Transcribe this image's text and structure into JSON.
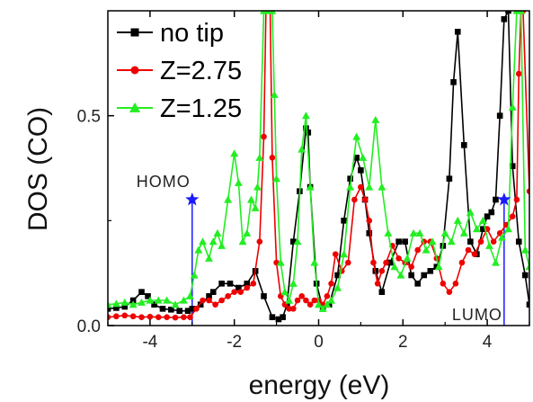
{
  "chart_data": {
    "type": "line",
    "xlabel": "energy (eV)",
    "ylabel": "DOS (CO)",
    "xlim": [
      -5,
      5
    ],
    "ylim": [
      0,
      0.75
    ],
    "xticks": [
      -4,
      -2,
      0,
      2,
      4
    ],
    "xtick_labels": [
      "-4",
      "-2",
      "0",
      "2",
      "4"
    ],
    "yticks": [
      0.0,
      0.5
    ],
    "ytick_labels": [
      "0.0",
      "0.5"
    ],
    "grid": false,
    "legend_position": "top-left",
    "series": [
      {
        "name": "no tip",
        "color": "#000000",
        "marker": "square",
        "x": [
          -5.0,
          -4.8,
          -4.6,
          -4.4,
          -4.2,
          -4.05,
          -3.9,
          -3.7,
          -3.5,
          -3.3,
          -3.1,
          -3.0,
          -2.8,
          -2.6,
          -2.5,
          -2.3,
          -2.1,
          -1.9,
          -1.7,
          -1.5,
          -1.3,
          -1.1,
          -0.95,
          -0.85,
          -0.75,
          -0.6,
          -0.45,
          -0.3,
          -0.25,
          -0.2,
          -0.05,
          0.1,
          0.25,
          0.45,
          0.6,
          0.75,
          0.9,
          1.0,
          1.1,
          1.2,
          1.35,
          1.5,
          1.7,
          1.9,
          2.05,
          2.2,
          2.35,
          2.5,
          2.65,
          2.8,
          2.95,
          3.1,
          3.2,
          3.3,
          3.45,
          3.6,
          3.75,
          3.9,
          4.0,
          4.1,
          4.2,
          4.3,
          4.4,
          4.5,
          4.6,
          4.75,
          4.9,
          5.0
        ],
        "y": [
          0.04,
          0.042,
          0.045,
          0.06,
          0.08,
          0.07,
          0.05,
          0.04,
          0.038,
          0.035,
          0.035,
          0.04,
          0.05,
          0.07,
          0.08,
          0.1,
          0.1,
          0.09,
          0.1,
          0.13,
          0.07,
          0.02,
          0.015,
          0.02,
          0.05,
          0.2,
          0.32,
          0.47,
          0.46,
          0.33,
          0.1,
          0.04,
          0.05,
          0.12,
          0.25,
          0.35,
          0.4,
          0.37,
          0.3,
          0.22,
          0.13,
          0.08,
          0.15,
          0.2,
          0.2,
          0.12,
          0.1,
          0.12,
          0.13,
          0.14,
          0.19,
          0.35,
          0.58,
          0.7,
          0.43,
          0.2,
          0.17,
          0.23,
          0.26,
          0.27,
          0.3,
          0.5,
          0.73,
          0.75,
          0.38,
          0.2,
          0.12,
          0.05
        ]
      },
      {
        "name": "Z=2.75",
        "color": "#ee0000",
        "marker": "circle",
        "x": [
          -5.0,
          -4.8,
          -4.6,
          -4.4,
          -4.2,
          -4.0,
          -3.8,
          -3.6,
          -3.4,
          -3.2,
          -3.05,
          -2.9,
          -2.75,
          -2.6,
          -2.45,
          -2.3,
          -2.15,
          -2.0,
          -1.85,
          -1.7,
          -1.55,
          -1.4,
          -1.3,
          -1.25,
          -1.2,
          -1.15,
          -1.1,
          -1.0,
          -0.9,
          -0.8,
          -0.7,
          -0.6,
          -0.5,
          -0.4,
          -0.3,
          -0.2,
          -0.1,
          0.0,
          0.1,
          0.2,
          0.3,
          0.4,
          0.55,
          0.7,
          0.85,
          1.0,
          1.1,
          1.2,
          1.3,
          1.4,
          1.5,
          1.6,
          1.75,
          1.9,
          2.05,
          2.2,
          2.35,
          2.5,
          2.65,
          2.8,
          2.95,
          3.1,
          3.25,
          3.4,
          3.55,
          3.7,
          3.85,
          4.0,
          4.15,
          4.3,
          4.45,
          4.6,
          4.7,
          4.75,
          4.8,
          4.85,
          5.0
        ],
        "y": [
          0.02,
          0.022,
          0.024,
          0.022,
          0.02,
          0.021,
          0.02,
          0.02,
          0.019,
          0.02,
          0.02,
          0.04,
          0.06,
          0.06,
          0.05,
          0.06,
          0.07,
          0.08,
          0.08,
          0.09,
          0.1,
          0.2,
          0.45,
          0.75,
          0.75,
          0.75,
          0.4,
          0.15,
          0.07,
          0.05,
          0.04,
          0.04,
          0.06,
          0.07,
          0.06,
          0.05,
          0.06,
          0.06,
          0.05,
          0.07,
          0.1,
          0.17,
          0.13,
          0.15,
          0.3,
          0.33,
          0.3,
          0.25,
          0.15,
          0.1,
          0.13,
          0.15,
          0.19,
          0.16,
          0.15,
          0.14,
          0.18,
          0.2,
          0.2,
          0.16,
          0.1,
          0.08,
          0.1,
          0.15,
          0.18,
          0.17,
          0.2,
          0.23,
          0.2,
          0.22,
          0.24,
          0.26,
          0.3,
          0.6,
          0.75,
          0.75,
          0.32
        ]
      },
      {
        "name": "Z=1.25",
        "color": "#22ee22",
        "marker": "triangle",
        "x": [
          -5.0,
          -4.8,
          -4.6,
          -4.4,
          -4.2,
          -4.0,
          -3.8,
          -3.6,
          -3.4,
          -3.2,
          -3.05,
          -2.95,
          -2.85,
          -2.75,
          -2.6,
          -2.5,
          -2.4,
          -2.3,
          -2.15,
          -2.0,
          -1.9,
          -1.8,
          -1.7,
          -1.6,
          -1.5,
          -1.45,
          -1.4,
          -1.3,
          -1.2,
          -1.1,
          -1.05,
          -1.0,
          -0.9,
          -0.8,
          -0.7,
          -0.6,
          -0.5,
          -0.4,
          -0.3,
          -0.2,
          -0.1,
          0.0,
          0.1,
          0.2,
          0.3,
          0.45,
          0.6,
          0.75,
          0.9,
          1.05,
          1.2,
          1.35,
          1.5,
          1.65,
          1.8,
          1.95,
          2.1,
          2.25,
          2.4,
          2.55,
          2.7,
          2.85,
          3.0,
          3.15,
          3.3,
          3.45,
          3.6,
          3.75,
          3.9,
          4.05,
          4.2,
          4.35,
          4.5,
          4.6,
          4.7,
          4.8,
          4.9,
          5.0
        ],
        "y": [
          0.05,
          0.052,
          0.055,
          0.05,
          0.055,
          0.06,
          0.06,
          0.06,
          0.05,
          0.06,
          0.07,
          0.12,
          0.18,
          0.2,
          0.16,
          0.2,
          0.22,
          0.19,
          0.3,
          0.41,
          0.34,
          0.2,
          0.22,
          0.3,
          0.28,
          0.33,
          0.4,
          0.75,
          0.75,
          0.75,
          0.55,
          0.35,
          0.15,
          0.08,
          0.06,
          0.1,
          0.2,
          0.42,
          0.5,
          0.33,
          0.15,
          0.05,
          0.04,
          0.05,
          0.06,
          0.09,
          0.17,
          0.33,
          0.45,
          0.4,
          0.33,
          0.49,
          0.33,
          0.22,
          0.14,
          0.12,
          0.16,
          0.22,
          0.22,
          0.18,
          0.2,
          0.14,
          0.22,
          0.2,
          0.25,
          0.22,
          0.27,
          0.23,
          0.25,
          0.19,
          0.15,
          0.21,
          0.23,
          0.52,
          0.75,
          0.75,
          0.18,
          0.14
        ]
      }
    ],
    "annotations": [
      {
        "text": "HOMO",
        "x": -3.0,
        "y": 0.3,
        "color": "#1a1aff",
        "marker": "star"
      },
      {
        "text": "LUMO",
        "x": 4.4,
        "y": 0.3,
        "color": "#1a1aff",
        "marker": "star"
      }
    ]
  }
}
